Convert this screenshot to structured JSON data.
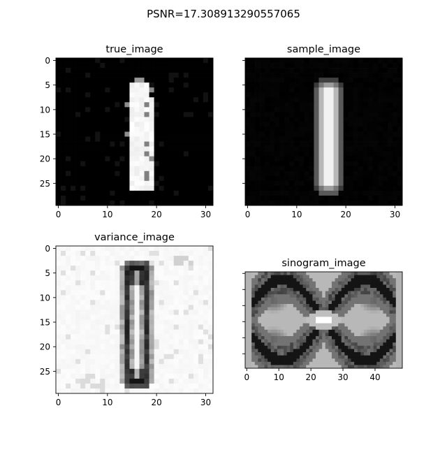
{
  "figure": {
    "suptitle": "PSNR=17.308913290557065"
  },
  "chart_data": [
    {
      "type": "heatmap",
      "title": "true_image",
      "xlim": [
        -0.5,
        31.5
      ],
      "ylim": [
        29.5,
        -0.5
      ],
      "xticks": [
        0,
        10,
        20,
        30
      ],
      "yticks": [
        0,
        5,
        10,
        15,
        20,
        25
      ],
      "colormap": "gray",
      "content": "bright vertical stroke of a digit 1 on near-black background",
      "stroke": {
        "top": 4.5,
        "bottom": 26.5,
        "x_left": 15,
        "x_right": 18.5
      }
    },
    {
      "type": "heatmap",
      "title": "sample_image",
      "xlim": [
        -0.5,
        31.5
      ],
      "ylim": [
        29.5,
        -0.5
      ],
      "xticks": [
        0,
        10,
        20,
        30
      ],
      "yticks": [
        0,
        5,
        10,
        15,
        20,
        25
      ],
      "colormap": "gray",
      "content": "softer reconstructed digit 1 stroke on black background",
      "stroke": {
        "top": 4.5,
        "bottom": 27,
        "x_left": 14.5,
        "x_right": 19.5
      }
    },
    {
      "type": "heatmap",
      "title": "variance_image",
      "xlim": [
        -0.5,
        31.5
      ],
      "ylim": [
        29.5,
        -0.5
      ],
      "xticks": [
        0,
        10,
        20,
        30
      ],
      "yticks": [
        0,
        5,
        10,
        15,
        20,
        25
      ],
      "colormap": "gray",
      "content": "dark outline of the digit 1 on a light background",
      "stroke": {
        "top": 3.5,
        "bottom": 27.5,
        "x_left": 13.5,
        "x_right": 19
      }
    },
    {
      "type": "heatmap",
      "title": "sinogram_image",
      "xlim": [
        -0.5,
        48.5
      ],
      "ylim": [
        29.5,
        -0.5
      ],
      "xticks": [
        0,
        10,
        20,
        30,
        40
      ],
      "yticks": [],
      "colormap": "gray",
      "content": "sinogram with crossing curved bands and a bright centre"
    }
  ]
}
